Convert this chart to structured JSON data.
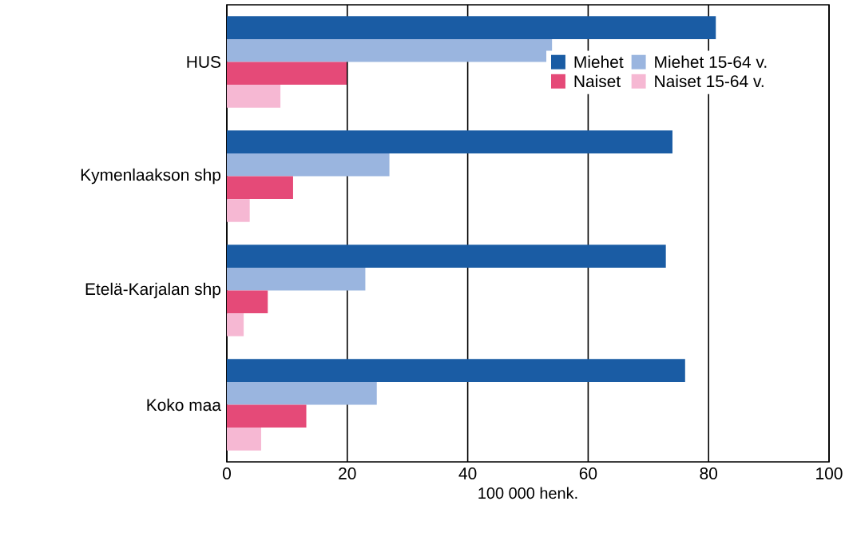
{
  "chart_data": {
    "type": "bar",
    "orientation": "horizontal",
    "xlabel": "100 000 henk.",
    "categories": [
      "HUS",
      "Kymenlaakson shp",
      "Etelä-Karjalan shp",
      "Koko maa"
    ],
    "series": [
      {
        "name": "Miehet",
        "color": "#1a5ca4",
        "values": [
          81.2,
          74.0,
          72.9,
          76.1
        ]
      },
      {
        "name": "Miehet 15-64 v.",
        "color": "#9ab5df",
        "values": [
          54.0,
          27.0,
          23.0,
          24.9
        ]
      },
      {
        "name": "Naiset",
        "color": "#e54a78",
        "values": [
          19.9,
          11.0,
          6.8,
          13.2
        ]
      },
      {
        "name": "Naiset 15-64 v.",
        "color": "#f6b8d3",
        "values": [
          8.9,
          3.8,
          2.8,
          5.7
        ]
      }
    ],
    "xlim": [
      0,
      100
    ],
    "xticks": [
      0,
      20,
      40,
      60,
      80,
      100
    ],
    "grid": "x",
    "legend": "top right"
  }
}
